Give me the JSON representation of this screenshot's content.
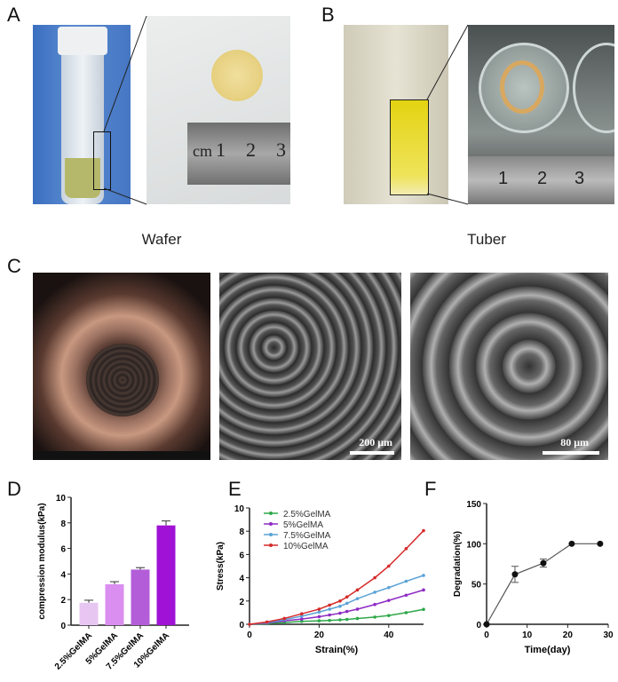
{
  "panels": {
    "a": "A",
    "b": "B",
    "c": "C",
    "d": "D",
    "e": "E",
    "f": "F"
  },
  "captions": {
    "wafer": "Wafer",
    "tuber": "Tuber"
  },
  "ruler_a": {
    "unit": "cm",
    "n1": "1",
    "n2": "2",
    "n3": "3"
  },
  "ruler_b": {
    "n1": "1",
    "n2": "2",
    "n3": "3"
  },
  "scale_bars": {
    "sem1": "200 μm",
    "sem2": "80 μm"
  },
  "colors": {
    "d": [
      "#e8c6f2",
      "#d98ef0",
      "#b35ed8",
      "#9f12d6"
    ],
    "e": [
      "#2fa84a",
      "#8e2bc4",
      "#5ba3d6",
      "#d62a2a"
    ]
  },
  "chart_data": [
    {
      "type": "bar",
      "categories": [
        "2.5%GelMA",
        "5%GelMA",
        "7.5%GelMA",
        "10%GelMA"
      ],
      "values": [
        1.75,
        3.2,
        4.35,
        7.8
      ],
      "errors": [
        0.2,
        0.2,
        0.15,
        0.35
      ],
      "ylabel": "compression modulus(kPa)",
      "ylim": [
        0,
        10
      ],
      "yticks": [
        "0",
        "2",
        "4",
        "6",
        "8",
        "10"
      ]
    },
    {
      "type": "line",
      "xlabel": "Strain(%)",
      "ylabel": "Stress(kPa)",
      "xlim": [
        0,
        50
      ],
      "ylim": [
        0,
        10
      ],
      "xticks": [
        "0",
        "20",
        "40"
      ],
      "yticks": [
        "0",
        "2",
        "4",
        "6",
        "8",
        "10"
      ],
      "legend": "top-left",
      "x": [
        0,
        5,
        10,
        15,
        20,
        23,
        26,
        28,
        31,
        36,
        40,
        45,
        50
      ],
      "series": [
        {
          "name": "2.5%GelMA",
          "values": [
            0,
            0.05,
            0.15,
            0.25,
            0.3,
            0.33,
            0.38,
            0.42,
            0.5,
            0.62,
            0.75,
            1.0,
            1.28
          ]
        },
        {
          "name": "5%GelMA",
          "values": [
            0,
            0.1,
            0.3,
            0.45,
            0.65,
            0.8,
            0.95,
            1.1,
            1.3,
            1.7,
            2.05,
            2.5,
            2.95
          ]
        },
        {
          "name": "7.5%GelMA",
          "values": [
            0,
            0.15,
            0.4,
            0.7,
            1.05,
            1.3,
            1.55,
            1.8,
            2.2,
            2.75,
            3.15,
            3.7,
            4.2
          ]
        },
        {
          "name": "10%GelMA",
          "values": [
            0,
            0.2,
            0.5,
            0.9,
            1.3,
            1.65,
            2.0,
            2.35,
            2.95,
            4.0,
            5.0,
            6.5,
            8.05
          ]
        }
      ]
    },
    {
      "type": "line",
      "xlabel": "Time(day)",
      "ylabel": "Degradation(%)",
      "xlim": [
        0,
        30
      ],
      "ylim": [
        0,
        150
      ],
      "xticks": [
        "0",
        "10",
        "20",
        "30"
      ],
      "yticks": [
        "0",
        "50",
        "100",
        "150"
      ],
      "x": [
        0,
        7,
        14,
        21,
        28
      ],
      "values": [
        0,
        62,
        76,
        100,
        100
      ],
      "errors": [
        0,
        10,
        5,
        0,
        0
      ]
    }
  ]
}
